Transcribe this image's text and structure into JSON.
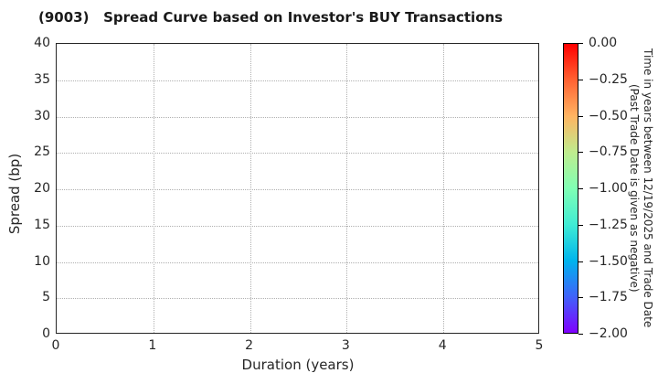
{
  "chart_data": {
    "type": "scatter",
    "title": "(9003)   Spread Curve based on Investor's BUY Transactions",
    "xlabel": "Duration (years)",
    "ylabel": "Spread (bp)",
    "xlim": [
      0,
      5
    ],
    "ylim": [
      0,
      40
    ],
    "xticks": [
      0,
      1,
      2,
      3,
      4,
      5
    ],
    "yticks": [
      0,
      5,
      10,
      15,
      20,
      25,
      30,
      35,
      40
    ],
    "grid": "dotted",
    "points": [],
    "colors": {
      "grid": "#b0b0b0",
      "spine": "#262626",
      "text": "#262626",
      "background": "#ffffff"
    },
    "colorbar": {
      "colormap": "rainbow",
      "vmax_label": "0.00",
      "vmin_label": "−2.00",
      "ticks": [
        "0.00",
        "−0.25",
        "−0.50",
        "−0.75",
        "−1.00",
        "−1.25",
        "−1.50",
        "−1.75",
        "−2.00"
      ],
      "label_lines": [
        "Time in years between 12/19/2025 and Trade Date",
        "(Past Trade Date is given as negative)"
      ],
      "gradient_stops": [
        {
          "pos": 0,
          "color": "#ff0000"
        },
        {
          "pos": 12.5,
          "color": "#ff6232"
        },
        {
          "pos": 25,
          "color": "#ffb462"
        },
        {
          "pos": 37.5,
          "color": "#bfec8e"
        },
        {
          "pos": 50,
          "color": "#80ffb4"
        },
        {
          "pos": 62.5,
          "color": "#40ecd4"
        },
        {
          "pos": 75,
          "color": "#00b4ec"
        },
        {
          "pos": 87.5,
          "color": "#4062fa"
        },
        {
          "pos": 100,
          "color": "#8000ff"
        }
      ]
    }
  }
}
